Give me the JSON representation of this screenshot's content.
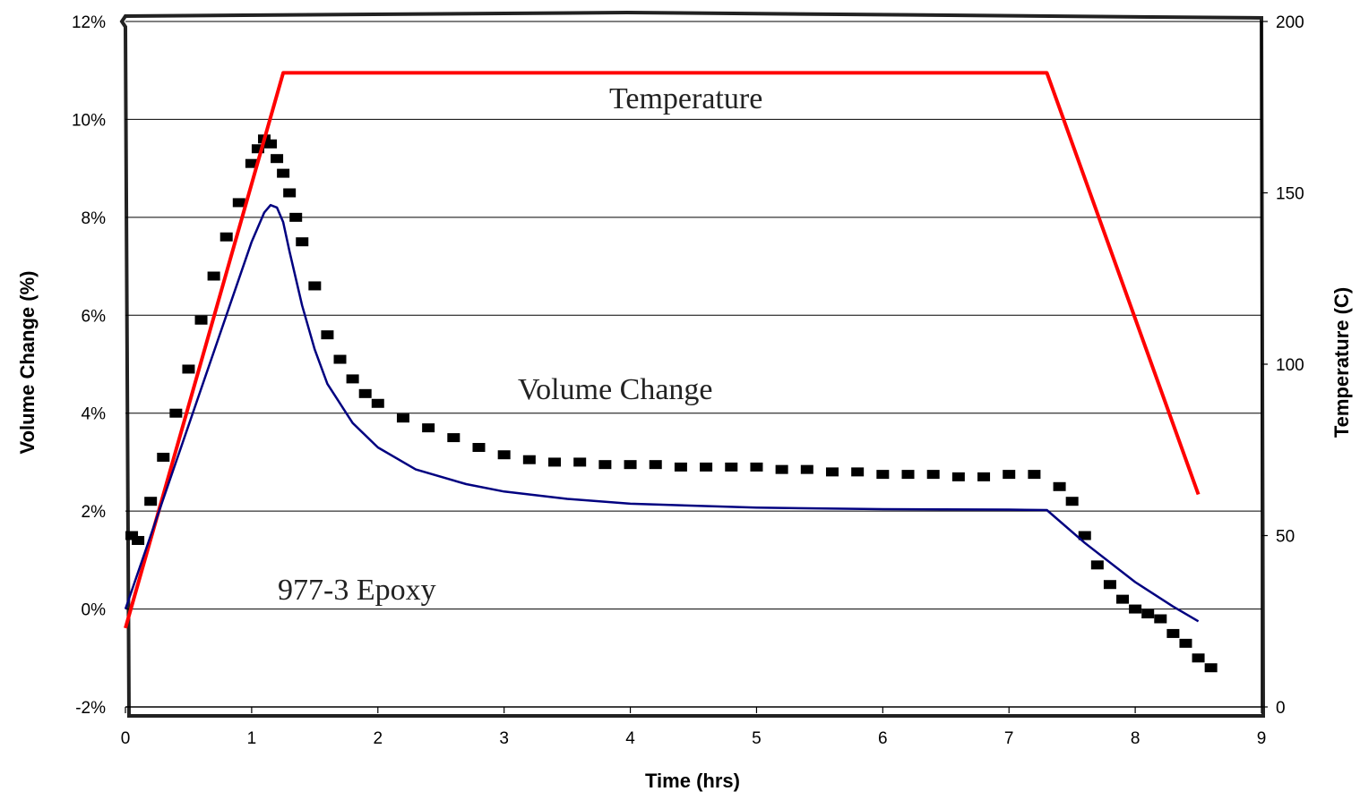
{
  "chart_data": {
    "type": "line",
    "xlabel": "Time (hrs)",
    "ylabel": "Volume Change (%)",
    "y2label": "Temperature (C)",
    "xlim": [
      0,
      9
    ],
    "ylim": [
      -2,
      12
    ],
    "y2lim": [
      0,
      200
    ],
    "x_ticks": [
      "0",
      "1",
      "2",
      "3",
      "4",
      "5",
      "6",
      "7",
      "8",
      "9"
    ],
    "y_ticks": [
      "-2%",
      "0%",
      "2%",
      "4%",
      "6%",
      "8%",
      "10%",
      "12%"
    ],
    "y2_ticks": [
      "0",
      "50",
      "100",
      "150",
      "200"
    ],
    "grid": "horizontal",
    "annotations": [
      "Temperature",
      "Volume Change",
      "977-3 Epoxy"
    ],
    "colors": {
      "temperature": "#ff0000",
      "volume": "#000080",
      "scan": "#000000"
    },
    "series": [
      {
        "axis": "right",
        "color": "#ff0000",
        "x": [
          0,
          1.25,
          7.3,
          8.5
        ],
        "y": [
          23,
          185,
          185,
          62
        ]
      },
      {
        "axis": "left",
        "color": "#000080",
        "x": [
          0,
          0.4,
          0.8,
          1.0,
          1.1,
          1.15,
          1.2,
          1.25,
          1.3,
          1.4,
          1.5,
          1.6,
          1.8,
          2.0,
          2.3,
          2.7,
          3.0,
          3.5,
          4.0,
          5.0,
          6.0,
          7.0,
          7.3,
          7.6,
          8.0,
          8.3,
          8.5
        ],
        "y": [
          0.0,
          3.0,
          6.0,
          7.5,
          8.1,
          8.25,
          8.2,
          7.9,
          7.3,
          6.2,
          5.3,
          4.6,
          3.8,
          3.3,
          2.85,
          2.55,
          2.4,
          2.25,
          2.15,
          2.07,
          2.04,
          2.03,
          2.02,
          1.35,
          0.55,
          0.05,
          -0.25
        ]
      }
    ],
    "scan_points": {
      "x": [
        0.05,
        0.1,
        0.2,
        0.3,
        0.4,
        0.5,
        0.6,
        0.7,
        0.8,
        0.9,
        1.0,
        1.05,
        1.1,
        1.15,
        1.2,
        1.25,
        1.3,
        1.35,
        1.4,
        1.5,
        1.6,
        1.7,
        1.8,
        1.9,
        2.0,
        2.2,
        2.4,
        2.6,
        2.8,
        3.0,
        3.2,
        3.4,
        3.6,
        3.8,
        4.0,
        4.2,
        4.4,
        4.6,
        4.8,
        5.0,
        5.2,
        5.4,
        5.6,
        5.8,
        6.0,
        6.2,
        6.4,
        6.6,
        6.8,
        7.0,
        7.2,
        7.4,
        7.5,
        7.6,
        7.7,
        7.8,
        7.9,
        8.0,
        8.1,
        8.2,
        8.3,
        8.4,
        8.5,
        8.6
      ],
      "y": [
        1.5,
        1.4,
        2.2,
        3.1,
        4.0,
        4.9,
        5.9,
        6.8,
        7.6,
        8.3,
        9.1,
        9.4,
        9.6,
        9.5,
        9.2,
        8.9,
        8.5,
        8.0,
        7.5,
        6.6,
        5.6,
        5.1,
        4.7,
        4.4,
        4.2,
        3.9,
        3.7,
        3.5,
        3.3,
        3.15,
        3.05,
        3.0,
        3.0,
        2.95,
        2.95,
        2.95,
        2.9,
        2.9,
        2.9,
        2.9,
        2.85,
        2.85,
        2.8,
        2.8,
        2.75,
        2.75,
        2.75,
        2.7,
        2.7,
        2.75,
        2.75,
        2.5,
        2.2,
        1.5,
        0.9,
        0.5,
        0.2,
        0.0,
        -0.1,
        -0.2,
        -0.5,
        -0.7,
        -1.0,
        -1.2
      ]
    }
  }
}
